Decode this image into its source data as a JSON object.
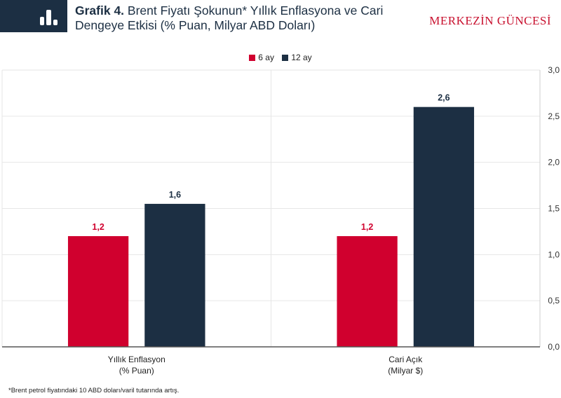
{
  "header": {
    "title_bold": "Grafik 4.",
    "title_text": "Brent Fiyatı Şokunun* Yıllık Enflasyona ve Cari Dengeye Etkisi (% Puan, Milyar ABD Doları)",
    "brand": "MERKEZİN GÜNCESİ",
    "icon": "bar-chart-icon"
  },
  "footnote": "*Brent petrol fiyatındaki 10 ABD doları/varil tutarında artış.",
  "colors": {
    "six_months": "#d0002e",
    "twelve_months": "#1c2f43",
    "header_bg": "#1c2f43",
    "brand": "#c8102e"
  },
  "chart_data": {
    "type": "bar",
    "categories": [
      [
        "Yıllık Enflasyon",
        "(% Puan)"
      ],
      [
        "Cari Açık",
        "(Milyar $)"
      ]
    ],
    "series": [
      {
        "name": "6 ay",
        "values": [
          1.2,
          1.2
        ],
        "labels": [
          "1,2",
          "1,2"
        ],
        "color": "#d0002e"
      },
      {
        "name": "12 ay",
        "values": [
          1.55,
          2.6
        ],
        "labels": [
          "1,6",
          "2,6"
        ],
        "color": "#1c2f43"
      }
    ],
    "ylim": [
      0,
      3.0
    ],
    "yticks": [
      "0,0",
      "0,5",
      "1,0",
      "1,5",
      "2,0",
      "2,5",
      "3,0"
    ],
    "y_axis_side": "right",
    "grid": true,
    "legend_position": "top-center"
  }
}
